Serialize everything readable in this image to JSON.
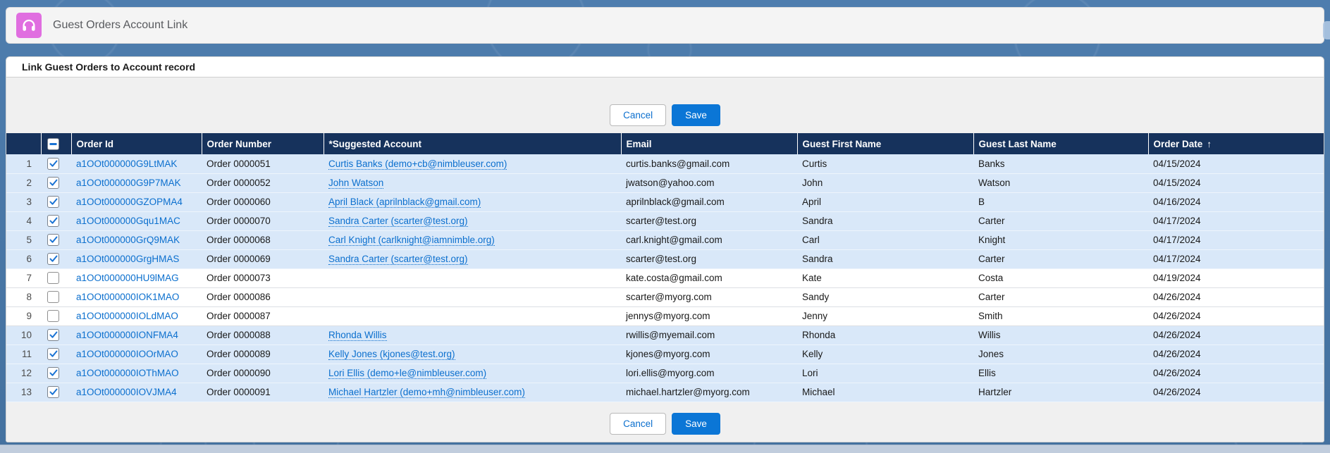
{
  "app": {
    "title": "Guest Orders Account Link",
    "icon": "headset-icon",
    "icon_bg": "#e06ee0"
  },
  "panel": {
    "heading": "Link Guest Orders to Account record"
  },
  "actions": {
    "cancel_label": "Cancel",
    "save_label": "Save"
  },
  "colors": {
    "accent": "#0b76d6",
    "table_header_bg": "#16325c",
    "selected_row_bg": "#d9e8f9",
    "link": "#0b6fce",
    "page_bg": "#4a79ad"
  },
  "table": {
    "columns": [
      "Order Id",
      "Order Number",
      "*Suggested Account",
      "Email",
      "Guest First Name",
      "Guest Last Name",
      "Order Date"
    ],
    "sort": {
      "column": "Order Date",
      "direction": "asc",
      "arrow": "↑"
    },
    "header_checkbox_state": "indeterminate",
    "rows": [
      {
        "num": 1,
        "checked": true,
        "order_id": "a1OOt000000G9LtMAK",
        "order_number": "Order 0000051",
        "suggested_account": "Curtis Banks (demo+cb@nimbleuser.com)",
        "email": "curtis.banks@gmail.com",
        "first_name": "Curtis",
        "last_name": "Banks",
        "order_date": "04/15/2024"
      },
      {
        "num": 2,
        "checked": true,
        "order_id": "a1OOt000000G9P7MAK",
        "order_number": "Order 0000052",
        "suggested_account": "John Watson",
        "email": "jwatson@yahoo.com",
        "first_name": "John",
        "last_name": "Watson",
        "order_date": "04/15/2024"
      },
      {
        "num": 3,
        "checked": true,
        "order_id": "a1OOt000000GZOPMA4",
        "order_number": "Order 0000060",
        "suggested_account": "April Black (aprilnblack@gmail.com)",
        "email": "aprilnblack@gmail.com",
        "first_name": "April",
        "last_name": "B",
        "order_date": "04/16/2024"
      },
      {
        "num": 4,
        "checked": true,
        "order_id": "a1OOt000000Gqu1MAC",
        "order_number": "Order 0000070",
        "suggested_account": "Sandra Carter (scarter@test.org)",
        "email": "scarter@test.org",
        "first_name": "Sandra",
        "last_name": "Carter",
        "order_date": "04/17/2024"
      },
      {
        "num": 5,
        "checked": true,
        "order_id": "a1OOt000000GrQ9MAK",
        "order_number": "Order 0000068",
        "suggested_account": "Carl Knight (carlknight@iamnimble.org)",
        "email": "carl.knight@gmail.com",
        "first_name": "Carl",
        "last_name": "Knight",
        "order_date": "04/17/2024"
      },
      {
        "num": 6,
        "checked": true,
        "order_id": "a1OOt000000GrgHMAS",
        "order_number": "Order 0000069",
        "suggested_account": "Sandra Carter (scarter@test.org)",
        "email": "scarter@test.org",
        "first_name": "Sandra",
        "last_name": "Carter",
        "order_date": "04/17/2024"
      },
      {
        "num": 7,
        "checked": false,
        "order_id": "a1OOt000000HU9lMAG",
        "order_number": "Order 0000073",
        "suggested_account": "",
        "email": "kate.costa@gmail.com",
        "first_name": "Kate",
        "last_name": "Costa",
        "order_date": "04/19/2024"
      },
      {
        "num": 8,
        "checked": false,
        "order_id": "a1OOt000000IOK1MAO",
        "order_number": "Order 0000086",
        "suggested_account": "",
        "email": "scarter@myorg.com",
        "first_name": "Sandy",
        "last_name": "Carter",
        "order_date": "04/26/2024"
      },
      {
        "num": 9,
        "checked": false,
        "order_id": "a1OOt000000IOLdMAO",
        "order_number": "Order 0000087",
        "suggested_account": "",
        "email": "jennys@myorg.com",
        "first_name": "Jenny",
        "last_name": "Smith",
        "order_date": "04/26/2024"
      },
      {
        "num": 10,
        "checked": true,
        "order_id": "a1OOt000000IONFMA4",
        "order_number": "Order 0000088",
        "suggested_account": "Rhonda Willis",
        "email": "rwillis@myemail.com",
        "first_name": "Rhonda",
        "last_name": "Willis",
        "order_date": "04/26/2024"
      },
      {
        "num": 11,
        "checked": true,
        "order_id": "a1OOt000000IOOrMAO",
        "order_number": "Order 0000089",
        "suggested_account": "Kelly Jones (kjones@test.org)",
        "email": "kjones@myorg.com",
        "first_name": "Kelly",
        "last_name": "Jones",
        "order_date": "04/26/2024"
      },
      {
        "num": 12,
        "checked": true,
        "order_id": "a1OOt000000IOThMAO",
        "order_number": "Order 0000090",
        "suggested_account": "Lori Ellis (demo+le@nimbleuser.com)",
        "email": "lori.ellis@myorg.com",
        "first_name": "Lori",
        "last_name": "Ellis",
        "order_date": "04/26/2024"
      },
      {
        "num": 13,
        "checked": true,
        "order_id": "a1OOt000000IOVJMA4",
        "order_number": "Order 0000091",
        "suggested_account": "Michael Hartzler (demo+mh@nimbleuser.com)",
        "email": "michael.hartzler@myorg.com",
        "first_name": "Michael",
        "last_name": "Hartzler",
        "order_date": "04/26/2024"
      }
    ]
  }
}
